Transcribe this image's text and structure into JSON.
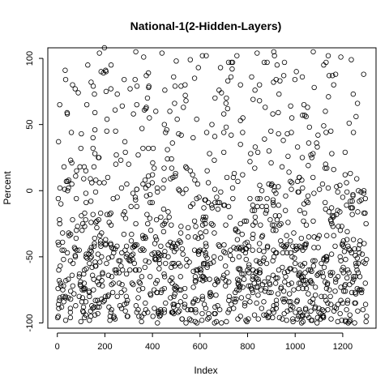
{
  "chart_data": {
    "type": "scatter",
    "title": "National-1(2-Hidden-Layers)",
    "xlabel": "Index",
    "ylabel": "Percent",
    "xlim": [
      -40,
      1340
    ],
    "ylim": [
      -104,
      108
    ],
    "x_ticks": [
      0,
      200,
      400,
      600,
      800,
      1000,
      1200
    ],
    "y_ticks": [
      -100,
      -50,
      0,
      50,
      100
    ],
    "n_points": 1300,
    "point_style": "open-circle",
    "grid": false,
    "legend": "none",
    "series": [
      {
        "points": [
          [
            5,
            37
          ],
          [
            10,
            65
          ],
          [
            15,
            -10
          ],
          [
            20,
            -45
          ],
          [
            28,
            18
          ],
          [
            36,
            -68
          ],
          [
            42,
            58
          ],
          [
            55,
            -92
          ],
          [
            64,
            -22
          ],
          [
            75,
            77
          ],
          [
            88,
            74
          ],
          [
            95,
            18
          ],
          [
            104,
            -30
          ],
          [
            112,
            -75
          ],
          [
            120,
            -2
          ],
          [
            128,
            95
          ],
          [
            135,
            -55
          ],
          [
            142,
            82
          ],
          [
            150,
            40
          ],
          [
            158,
            28
          ],
          [
            168,
            -88
          ],
          [
            175,
            25
          ],
          [
            182,
            -40
          ],
          [
            190,
            -62
          ],
          [
            198,
            108
          ],
          [
            205,
            75
          ],
          [
            212,
            10
          ],
          [
            220,
            -18
          ],
          [
            230,
            -50
          ],
          [
            238,
            -95
          ],
          [
            245,
            45
          ],
          [
            252,
            -5
          ],
          [
            260,
            -70
          ],
          [
            270,
            2
          ],
          [
            280,
            -33
          ],
          [
            290,
            -80
          ],
          [
            300,
            20
          ],
          [
            310,
            -12
          ],
          [
            320,
            58
          ],
          [
            330,
            -60
          ],
          [
            340,
            27
          ],
          [
            350,
            -45
          ],
          [
            360,
            5
          ],
          [
            370,
            -85
          ],
          [
            380,
            -25
          ],
          [
            390,
            -65
          ],
          [
            400,
            12
          ],
          [
            410,
            -40
          ],
          [
            420,
            2
          ],
          [
            430,
            -95
          ],
          [
            440,
            104
          ],
          [
            450,
            50
          ],
          [
            460,
            46
          ],
          [
            470,
            -20
          ],
          [
            480,
            24
          ],
          [
            490,
            -55
          ],
          [
            500,
            98
          ],
          [
            510,
            43
          ],
          [
            520,
            -75
          ],
          [
            530,
            63
          ],
          [
            540,
            18
          ],
          [
            550,
            -35
          ],
          [
            560,
            -90
          ],
          [
            570,
            -10
          ],
          [
            580,
            -68
          ],
          [
            590,
            5
          ],
          [
            600,
            -45
          ],
          [
            610,
            -80
          ],
          [
            620,
            -22
          ],
          [
            630,
            -58
          ],
          [
            640,
            28
          ],
          [
            650,
            50
          ],
          [
            660,
            23
          ],
          [
            670,
            -5
          ],
          [
            680,
            76
          ],
          [
            690,
            74
          ],
          [
            700,
            44
          ],
          [
            710,
            48
          ],
          [
            720,
            97
          ],
          [
            730,
            86
          ],
          [
            740,
            10
          ],
          [
            750,
            -30
          ],
          [
            760,
            -70
          ],
          [
            770,
            53
          ],
          [
            780,
            55
          ],
          [
            790,
            -40
          ],
          [
            800,
            -60
          ],
          [
            810,
            22
          ],
          [
            820,
            -15
          ],
          [
            830,
            17
          ],
          [
            840,
            104
          ],
          [
            850,
            68
          ],
          [
            860,
            -35
          ],
          [
            870,
            97
          ],
          [
            880,
            -55
          ],
          [
            890,
            30
          ],
          [
            900,
            4
          ],
          [
            910,
            105
          ],
          [
            920,
            84
          ],
          [
            930,
            43
          ],
          [
            940,
            -25
          ],
          [
            950,
            38
          ],
          [
            960,
            -65
          ],
          [
            970,
            26
          ],
          [
            980,
            7
          ],
          [
            990,
            -88
          ],
          [
            1000,
            -45
          ],
          [
            1010,
            33
          ],
          [
            1020,
            -15
          ],
          [
            1030,
            86
          ],
          [
            1040,
            57
          ],
          [
            1050,
            -70
          ],
          [
            1060,
            48
          ],
          [
            1070,
            25
          ],
          [
            1080,
            -35
          ],
          [
            1090,
            36
          ],
          [
            1100,
            -92
          ],
          [
            1110,
            -55
          ],
          [
            1120,
            95
          ],
          [
            1130,
            97
          ],
          [
            1140,
            71
          ],
          [
            1150,
            45
          ],
          [
            1160,
            -20
          ],
          [
            1170,
            88
          ],
          [
            1180,
            -65
          ],
          [
            1190,
            -30
          ],
          [
            1200,
            -5
          ],
          [
            1210,
            12
          ],
          [
            1220,
            -85
          ],
          [
            1230,
            -45
          ],
          [
            1240,
            -18
          ],
          [
            1250,
            -100
          ],
          [
            1260,
            -60
          ],
          [
            1270,
            -8
          ],
          [
            1280,
            -75
          ],
          [
            1290,
            -40
          ],
          [
            1300,
            -95
          ]
        ]
      }
    ]
  }
}
